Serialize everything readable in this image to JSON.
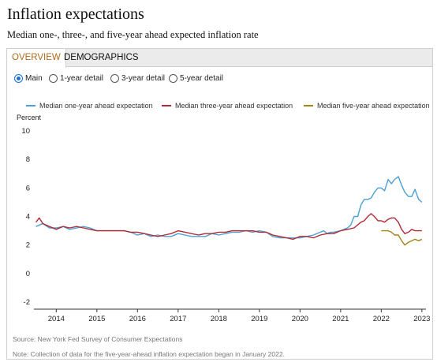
{
  "header": {
    "title": "Inflation expectations",
    "subtitle": "Median one-, three-, and five-year ahead expected inflation rate"
  },
  "tabs": [
    {
      "label": "OVERVIEW",
      "active": true
    },
    {
      "label": "DEMOGRAPHICS",
      "active": false
    }
  ],
  "views": [
    {
      "label": "Main",
      "selected": true
    },
    {
      "label": "1-year detail",
      "selected": false
    },
    {
      "label": "3-year detail",
      "selected": false
    },
    {
      "label": "5-year detail",
      "selected": false
    }
  ],
  "footer": {
    "source": "Source: New York Fed Survey of Consumer Expectations",
    "note": "Note: Collection of data for the five-year-ahead inflation expectation began in January 2022."
  },
  "chart_data": {
    "type": "line",
    "ylabel": "Percent",
    "ylim": [
      -2,
      10
    ],
    "yticks": [
      -2,
      0,
      2,
      4,
      6,
      8,
      10
    ],
    "xlim": [
      2013.45,
      2023.1
    ],
    "xticks": [
      2014,
      2015,
      2016,
      2017,
      2018,
      2019,
      2020,
      2021,
      2022,
      2023
    ],
    "grid": false,
    "legend": "top",
    "series": [
      {
        "name": "Median one-year ahead expectation",
        "color": "#4aa0d5",
        "points": [
          [
            2013.5,
            3.3
          ],
          [
            2013.67,
            3.5
          ],
          [
            2013.83,
            3.2
          ],
          [
            2014.0,
            3.2
          ],
          [
            2014.17,
            3.3
          ],
          [
            2014.33,
            3.1
          ],
          [
            2014.5,
            3.2
          ],
          [
            2014.67,
            3.3
          ],
          [
            2014.83,
            3.2
          ],
          [
            2015.0,
            3.0
          ],
          [
            2015.17,
            3.0
          ],
          [
            2015.33,
            3.0
          ],
          [
            2015.5,
            3.0
          ],
          [
            2015.67,
            3.0
          ],
          [
            2015.83,
            2.9
          ],
          [
            2016.0,
            2.7
          ],
          [
            2016.17,
            2.8
          ],
          [
            2016.33,
            2.6
          ],
          [
            2016.5,
            2.7
          ],
          [
            2016.67,
            2.6
          ],
          [
            2016.83,
            2.6
          ],
          [
            2017.0,
            2.8
          ],
          [
            2017.17,
            2.7
          ],
          [
            2017.33,
            2.6
          ],
          [
            2017.5,
            2.6
          ],
          [
            2017.67,
            2.6
          ],
          [
            2017.83,
            2.8
          ],
          [
            2018.0,
            2.7
          ],
          [
            2018.17,
            2.8
          ],
          [
            2018.33,
            2.9
          ],
          [
            2018.5,
            2.9
          ],
          [
            2018.67,
            3.0
          ],
          [
            2018.83,
            2.9
          ],
          [
            2019.0,
            3.0
          ],
          [
            2019.17,
            2.9
          ],
          [
            2019.33,
            2.6
          ],
          [
            2019.5,
            2.5
          ],
          [
            2019.67,
            2.5
          ],
          [
            2019.83,
            2.5
          ],
          [
            2020.0,
            2.5
          ],
          [
            2020.17,
            2.6
          ],
          [
            2020.33,
            2.7
          ],
          [
            2020.5,
            2.9
          ],
          [
            2020.58,
            3.0
          ],
          [
            2020.67,
            2.8
          ],
          [
            2020.75,
            2.9
          ],
          [
            2020.83,
            2.9
          ],
          [
            2021.0,
            3.0
          ],
          [
            2021.08,
            3.1
          ],
          [
            2021.17,
            3.2
          ],
          [
            2021.25,
            3.4
          ],
          [
            2021.33,
            4.0
          ],
          [
            2021.42,
            4.0
          ],
          [
            2021.5,
            4.8
          ],
          [
            2021.58,
            5.2
          ],
          [
            2021.67,
            5.2
          ],
          [
            2021.75,
            5.3
          ],
          [
            2021.83,
            5.7
          ],
          [
            2021.92,
            6.0
          ],
          [
            2022.0,
            6.0
          ],
          [
            2022.08,
            5.8
          ],
          [
            2022.17,
            6.6
          ],
          [
            2022.25,
            6.3
          ],
          [
            2022.33,
            6.6
          ],
          [
            2022.42,
            6.8
          ],
          [
            2022.5,
            6.2
          ],
          [
            2022.58,
            5.7
          ],
          [
            2022.67,
            5.4
          ],
          [
            2022.75,
            5.4
          ],
          [
            2022.83,
            5.9
          ],
          [
            2022.92,
            5.2
          ],
          [
            2023.0,
            5.0
          ]
        ]
      },
      {
        "name": "Median three-year ahead expectation",
        "color": "#b22a35",
        "points": [
          [
            2013.5,
            3.6
          ],
          [
            2013.58,
            3.9
          ],
          [
            2013.67,
            3.5
          ],
          [
            2013.83,
            3.3
          ],
          [
            2014.0,
            3.1
          ],
          [
            2014.17,
            3.3
          ],
          [
            2014.33,
            3.2
          ],
          [
            2014.5,
            3.3
          ],
          [
            2014.67,
            3.2
          ],
          [
            2014.83,
            3.1
          ],
          [
            2015.0,
            3.0
          ],
          [
            2015.17,
            3.0
          ],
          [
            2015.33,
            3.0
          ],
          [
            2015.5,
            3.0
          ],
          [
            2015.67,
            3.0
          ],
          [
            2015.83,
            2.9
          ],
          [
            2016.0,
            2.9
          ],
          [
            2016.17,
            2.8
          ],
          [
            2016.33,
            2.7
          ],
          [
            2016.5,
            2.6
          ],
          [
            2016.67,
            2.7
          ],
          [
            2016.83,
            2.8
          ],
          [
            2017.0,
            3.0
          ],
          [
            2017.17,
            2.9
          ],
          [
            2017.33,
            2.8
          ],
          [
            2017.5,
            2.7
          ],
          [
            2017.67,
            2.8
          ],
          [
            2017.83,
            2.8
          ],
          [
            2018.0,
            2.9
          ],
          [
            2018.17,
            2.9
          ],
          [
            2018.33,
            3.0
          ],
          [
            2018.5,
            3.0
          ],
          [
            2018.67,
            3.0
          ],
          [
            2018.83,
            3.0
          ],
          [
            2019.0,
            2.9
          ],
          [
            2019.17,
            2.9
          ],
          [
            2019.33,
            2.7
          ],
          [
            2019.5,
            2.6
          ],
          [
            2019.67,
            2.5
          ],
          [
            2019.83,
            2.4
          ],
          [
            2020.0,
            2.6
          ],
          [
            2020.17,
            2.6
          ],
          [
            2020.33,
            2.5
          ],
          [
            2020.5,
            2.7
          ],
          [
            2020.67,
            2.8
          ],
          [
            2020.83,
            2.8
          ],
          [
            2021.0,
            3.0
          ],
          [
            2021.17,
            3.1
          ],
          [
            2021.33,
            3.2
          ],
          [
            2021.5,
            3.6
          ],
          [
            2021.58,
            3.7
          ],
          [
            2021.67,
            4.0
          ],
          [
            2021.75,
            4.2
          ],
          [
            2021.83,
            4.0
          ],
          [
            2021.92,
            3.7
          ],
          [
            2022.0,
            3.7
          ],
          [
            2022.08,
            3.6
          ],
          [
            2022.17,
            3.8
          ],
          [
            2022.25,
            3.9
          ],
          [
            2022.33,
            3.9
          ],
          [
            2022.42,
            3.6
          ],
          [
            2022.5,
            3.1
          ],
          [
            2022.58,
            2.8
          ],
          [
            2022.67,
            2.9
          ],
          [
            2022.75,
            3.1
          ],
          [
            2022.83,
            3.0
          ],
          [
            2022.92,
            3.0
          ],
          [
            2023.0,
            3.0
          ]
        ]
      },
      {
        "name": "Median five-year ahead expectation",
        "color": "#a28418",
        "points": [
          [
            2022.0,
            3.0
          ],
          [
            2022.08,
            3.0
          ],
          [
            2022.17,
            3.0
          ],
          [
            2022.25,
            2.9
          ],
          [
            2022.33,
            2.7
          ],
          [
            2022.42,
            2.7
          ],
          [
            2022.5,
            2.3
          ],
          [
            2022.58,
            2.0
          ],
          [
            2022.67,
            2.2
          ],
          [
            2022.75,
            2.3
          ],
          [
            2022.83,
            2.4
          ],
          [
            2022.92,
            2.3
          ],
          [
            2023.0,
            2.4
          ]
        ]
      }
    ]
  }
}
